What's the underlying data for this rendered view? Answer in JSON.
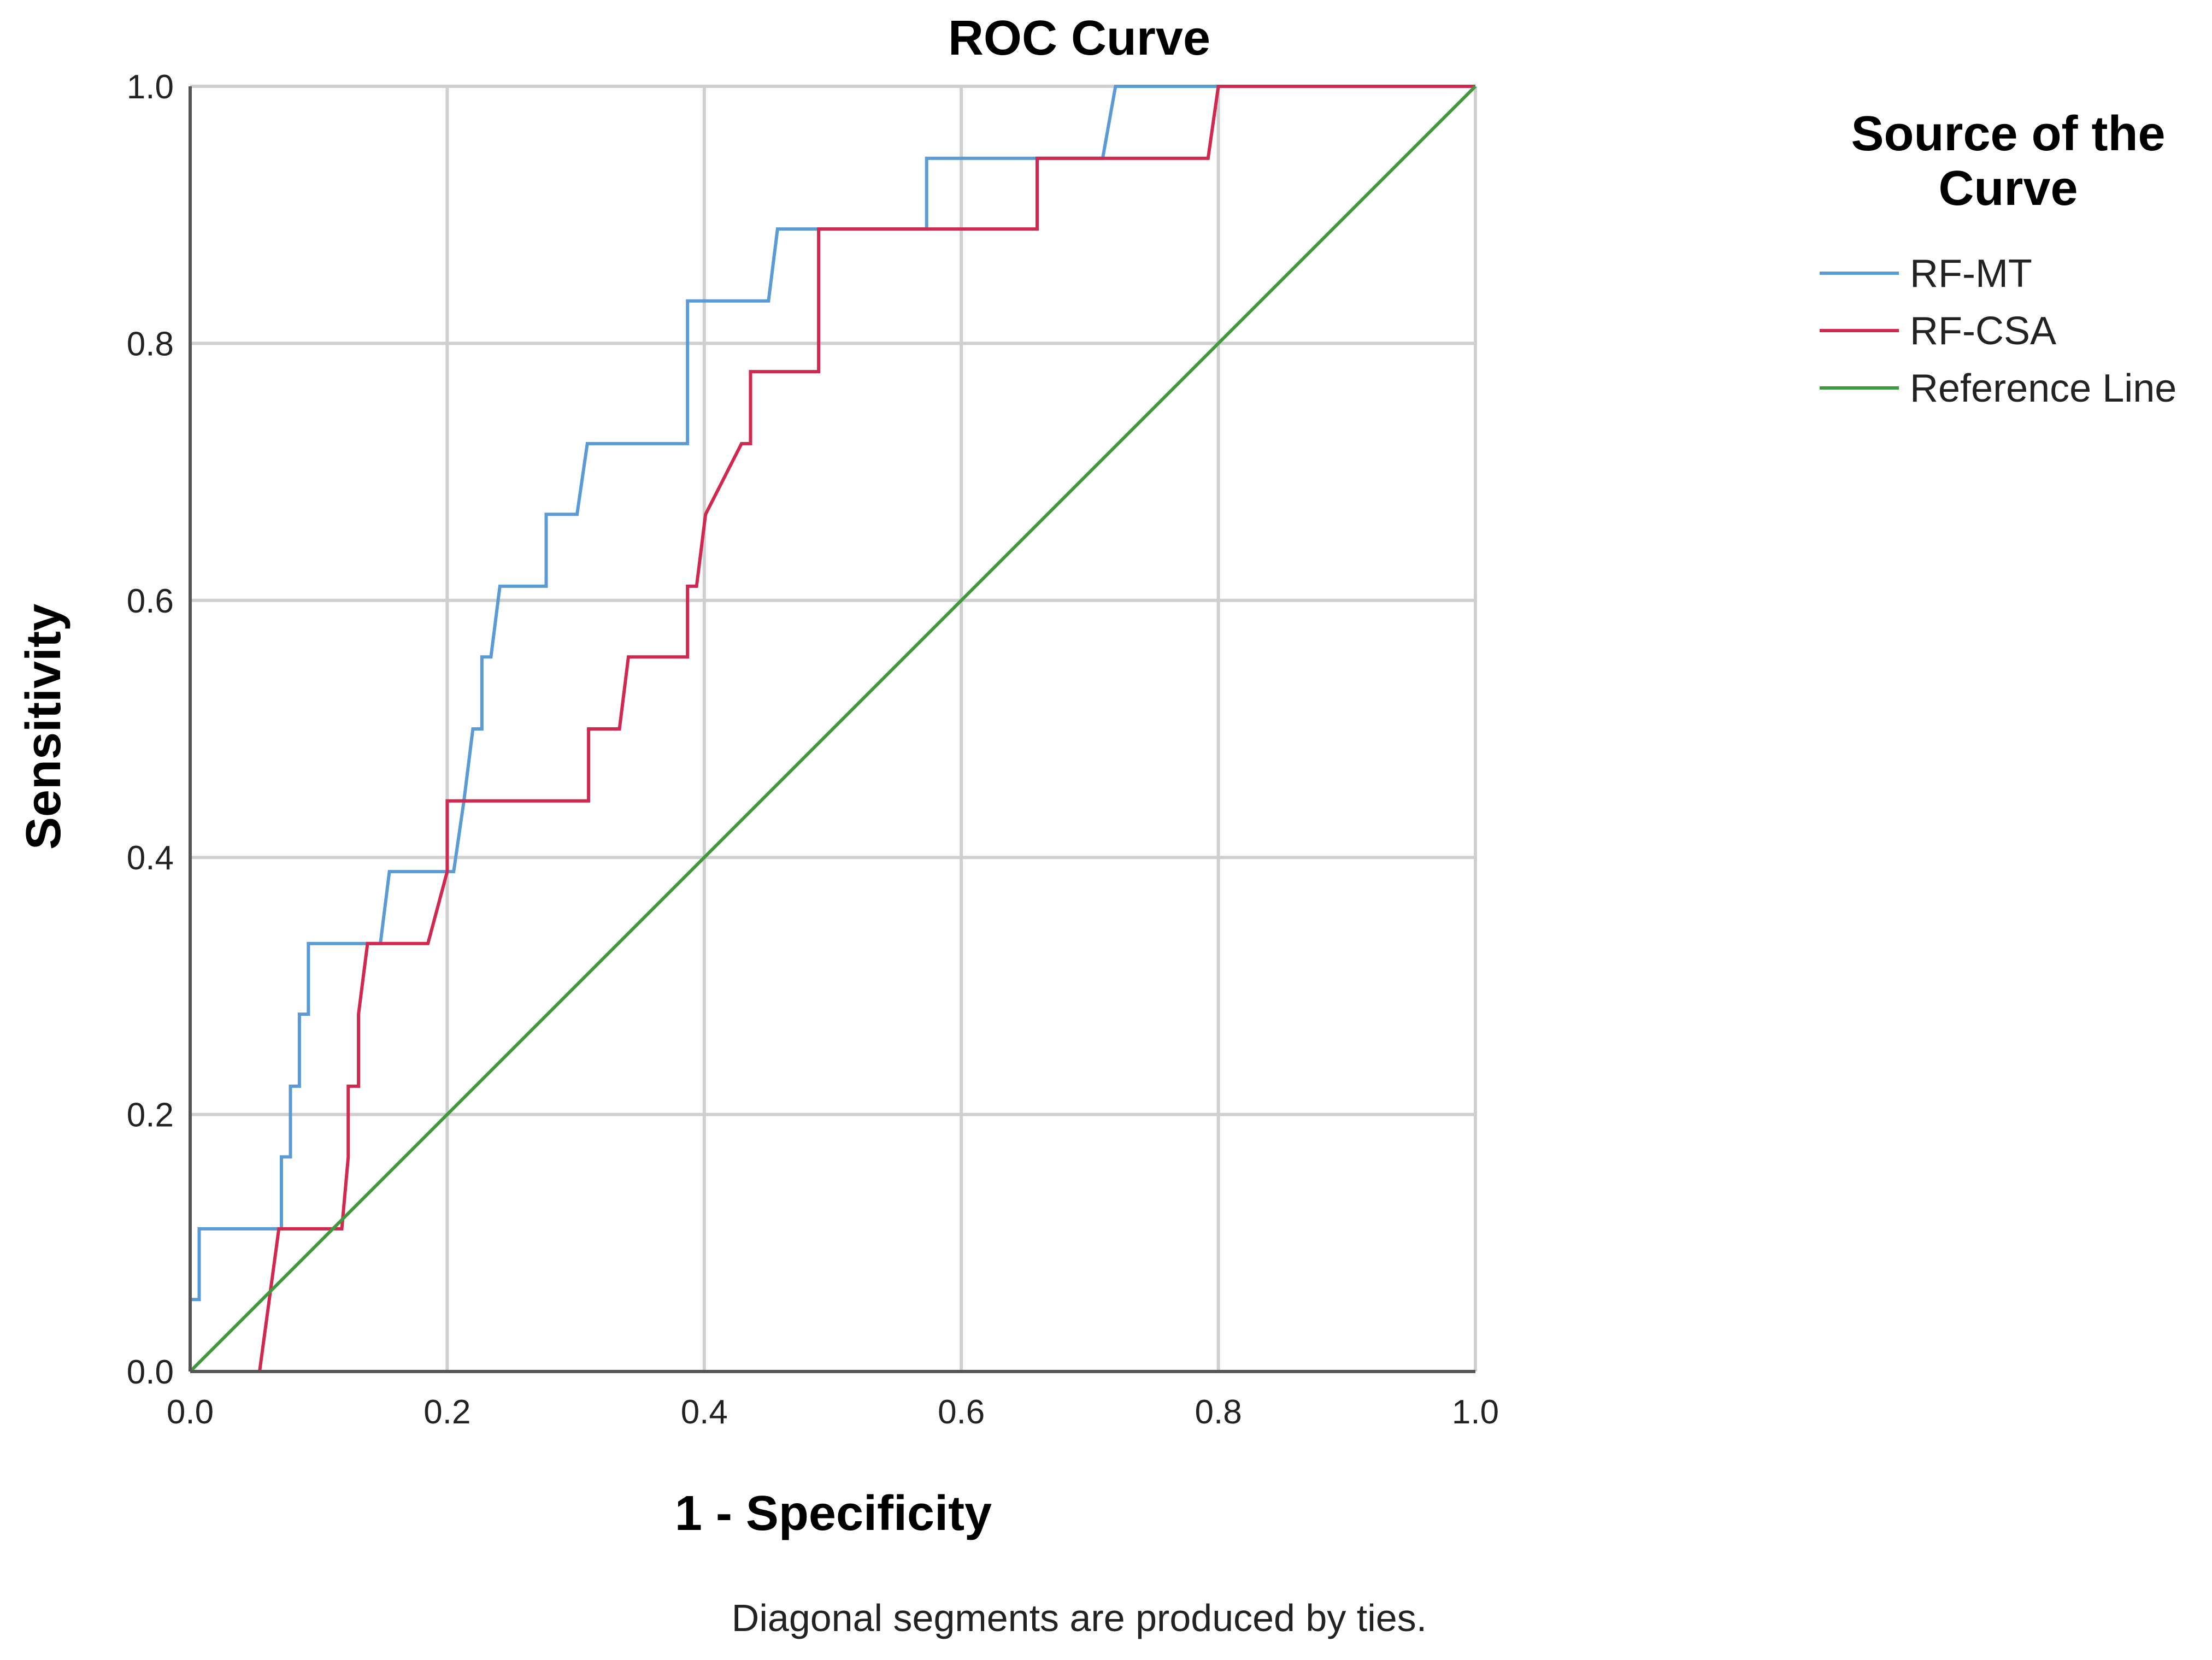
{
  "chart_data": {
    "type": "line",
    "title": "ROC Curve",
    "xlabel": "1 - Specificity",
    "ylabel": "Sensitivity",
    "xlim": [
      0,
      1
    ],
    "ylim": [
      0,
      1
    ],
    "x_ticks": [
      "0.0",
      "0.2",
      "0.4",
      "0.6",
      "0.8",
      "1.0"
    ],
    "y_ticks": [
      "0.0",
      "0.2",
      "0.4",
      "0.6",
      "0.8",
      "1.0"
    ],
    "grid": true,
    "legend": {
      "title": "Source of the Curve",
      "title_lines": [
        "Source of the",
        "Curve"
      ],
      "placement": "right"
    },
    "footnote": "Diagonal segments are produced by ties.",
    "series": [
      {
        "name": "RF-MT",
        "color": "#5b9bd5",
        "points": [
          [
            0.0,
            0.0
          ],
          [
            0.0,
            0.056
          ],
          [
            0.007,
            0.056
          ],
          [
            0.007,
            0.111
          ],
          [
            0.071,
            0.111
          ],
          [
            0.071,
            0.167
          ],
          [
            0.078,
            0.167
          ],
          [
            0.078,
            0.222
          ],
          [
            0.085,
            0.222
          ],
          [
            0.085,
            0.278
          ],
          [
            0.092,
            0.278
          ],
          [
            0.092,
            0.333
          ],
          [
            0.148,
            0.333
          ],
          [
            0.155,
            0.389
          ],
          [
            0.205,
            0.389
          ],
          [
            0.213,
            0.444
          ],
          [
            0.213,
            0.444
          ],
          [
            0.22,
            0.5
          ],
          [
            0.227,
            0.5
          ],
          [
            0.227,
            0.556
          ],
          [
            0.234,
            0.556
          ],
          [
            0.241,
            0.611
          ],
          [
            0.277,
            0.611
          ],
          [
            0.277,
            0.667
          ],
          [
            0.301,
            0.667
          ],
          [
            0.309,
            0.722
          ],
          [
            0.387,
            0.722
          ],
          [
            0.387,
            0.833
          ],
          [
            0.45,
            0.833
          ],
          [
            0.457,
            0.889
          ],
          [
            0.573,
            0.889
          ],
          [
            0.573,
            0.944
          ],
          [
            0.71,
            0.944
          ],
          [
            0.72,
            1.0
          ],
          [
            1.0,
            1.0
          ]
        ]
      },
      {
        "name": "RF-CSA",
        "color": "#d0284e",
        "points": [
          [
            0.0,
            0.0
          ],
          [
            0.054,
            0.0
          ],
          [
            0.069,
            0.111
          ],
          [
            0.118,
            0.111
          ],
          [
            0.123,
            0.167
          ],
          [
            0.123,
            0.222
          ],
          [
            0.131,
            0.222
          ],
          [
            0.131,
            0.278
          ],
          [
            0.138,
            0.333
          ],
          [
            0.185,
            0.333
          ],
          [
            0.2,
            0.389
          ],
          [
            0.2,
            0.444
          ],
          [
            0.31,
            0.444
          ],
          [
            0.31,
            0.5
          ],
          [
            0.334,
            0.5
          ],
          [
            0.341,
            0.556
          ],
          [
            0.387,
            0.556
          ],
          [
            0.387,
            0.611
          ],
          [
            0.394,
            0.611
          ],
          [
            0.401,
            0.667
          ],
          [
            0.429,
            0.722
          ],
          [
            0.436,
            0.722
          ],
          [
            0.436,
            0.778
          ],
          [
            0.489,
            0.778
          ],
          [
            0.489,
            0.889
          ],
          [
            0.659,
            0.889
          ],
          [
            0.659,
            0.944
          ],
          [
            0.792,
            0.944
          ],
          [
            0.8,
            1.0
          ],
          [
            1.0,
            1.0
          ]
        ]
      },
      {
        "name": "Reference Line",
        "color": "#3d9a3d",
        "points": [
          [
            0.0,
            0.0
          ],
          [
            1.0,
            1.0
          ]
        ]
      }
    ]
  }
}
